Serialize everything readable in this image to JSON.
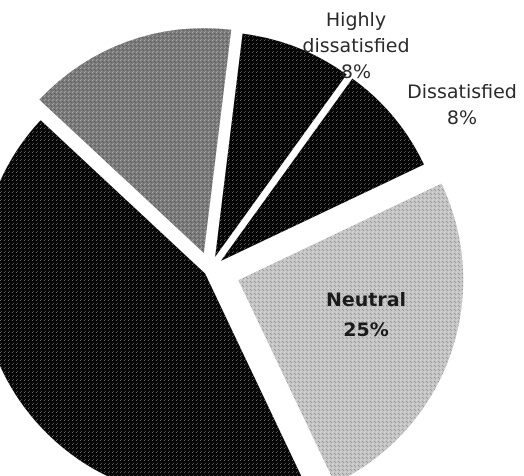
{
  "chart_data": {
    "type": "pie",
    "slices": [
      {
        "label": "Highly dissatisfied",
        "value": 8,
        "value_label": "8%",
        "color": "#050505",
        "label_lines": [
          "Highly",
          "dissatisfied",
          "8%"
        ]
      },
      {
        "label": "Dissatisfied",
        "value": 8,
        "value_label": "8%",
        "color": "#050505",
        "label_lines": [
          "Dissatisfied",
          "8%"
        ]
      },
      {
        "label": "Neutral",
        "value": 25,
        "value_label": "25%",
        "color": "#c4c4c4",
        "label_lines": [
          "Neutral",
          "25%"
        ]
      },
      {
        "label": "",
        "value": 44,
        "value_label": "",
        "color": "#070707",
        "label_lines": []
      },
      {
        "label": "",
        "value": 15,
        "value_label": "",
        "color": "#7a7a7a",
        "label_lines": []
      }
    ],
    "exploded": true,
    "legend": "none"
  }
}
